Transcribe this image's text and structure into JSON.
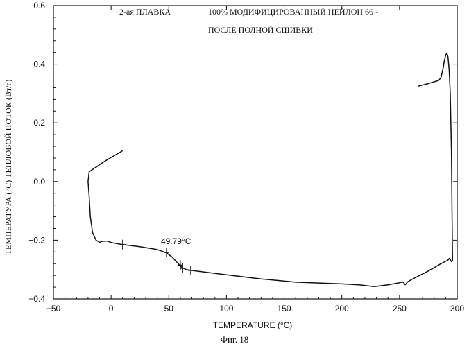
{
  "chart_data": {
    "type": "line",
    "title_left": "2-ая ПЛАВКА",
    "title_right_line1": "100% МОДИФИЦИРОВАННЫЙ НЕЙЛОН 66 -",
    "title_right_line2": "ПОСЛЕ ПОЛНОЙ СШИВКИ",
    "xlabel": "TEMPERATURE (°C)",
    "ylabel": "ТЕМПЕРАТУРА (°C) ТЕПЛОВОЙ ПОТОК (Вт/г)",
    "xlim": [
      -50,
      300
    ],
    "ylim": [
      -0.4,
      0.6
    ],
    "x_ticks": [
      -50,
      0,
      50,
      100,
      150,
      200,
      250,
      300
    ],
    "x_tick_labels": [
      "−50",
      "0",
      "50",
      "100",
      "150",
      "200",
      "250",
      "300"
    ],
    "y_ticks": [
      -0.4,
      -0.2,
      0.0,
      0.2,
      0.4,
      0.6
    ],
    "y_tick_labels": [
      "−0.4",
      "−0.2",
      "0.0",
      "0.2",
      "0.4",
      "0.6"
    ],
    "grid": false,
    "line_color": "#111111",
    "series": [
      {
        "x": [
          10,
          -6,
          -19,
          -20,
          -19,
          -18,
          -16,
          -13,
          -10,
          -7,
          -3,
          0,
          10,
          25,
          40,
          48,
          53,
          57,
          61,
          65,
          70,
          80,
          100,
          130,
          160,
          200,
          215,
          228,
          240,
          250,
          253,
          255,
          257,
          260,
          275,
          285,
          291,
          292,
          293,
          294,
          295,
          296
        ],
        "y": [
          0.105,
          0.068,
          0.033,
          0.0,
          -0.05,
          -0.12,
          -0.175,
          -0.2,
          -0.207,
          -0.203,
          -0.203,
          -0.208,
          -0.215,
          -0.222,
          -0.232,
          -0.243,
          -0.258,
          -0.275,
          -0.292,
          -0.3,
          -0.303,
          -0.308,
          -0.318,
          -0.332,
          -0.343,
          -0.349,
          -0.352,
          -0.358,
          -0.352,
          -0.345,
          -0.342,
          -0.352,
          -0.342,
          -0.335,
          -0.305,
          -0.282,
          -0.27,
          -0.268,
          -0.262,
          -0.266,
          -0.273,
          -0.27
        ]
      },
      {
        "x": [
          296,
          295.5,
          295,
          294,
          293,
          292,
          291,
          290,
          289,
          288,
          286,
          284,
          280,
          274,
          266
        ],
        "y": [
          -0.27,
          -0.1,
          0.1,
          0.3,
          0.38,
          0.425,
          0.438,
          0.43,
          0.415,
          0.39,
          0.355,
          0.345,
          0.34,
          0.333,
          0.325
        ]
      }
    ],
    "tick_marks": [
      {
        "x": 10,
        "y": -0.215
      },
      {
        "x": 48,
        "y": -0.242
      },
      {
        "x": 60,
        "y": -0.285
      },
      {
        "x": 62,
        "y": -0.296
      },
      {
        "x": 69,
        "y": -0.303
      }
    ],
    "annotation": {
      "text": "49.79°C",
      "x": 48,
      "y": -0.242
    }
  },
  "caption": "Фиг. 18"
}
